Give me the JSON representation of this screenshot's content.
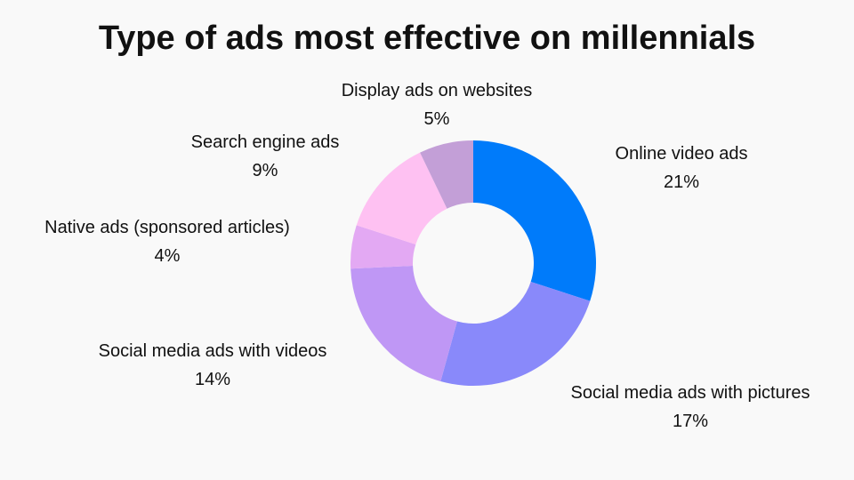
{
  "chart_data": {
    "type": "pie",
    "donut": true,
    "title": "Type of ads most effective on millennials",
    "slices": [
      {
        "label": "Online video ads",
        "value": 21,
        "display": "21%",
        "color": "#007BFA"
      },
      {
        "label": "Social media ads with pictures",
        "value": 17,
        "display": "17%",
        "color": "#8989FA"
      },
      {
        "label": "Social media ads with videos",
        "value": 14,
        "display": "14%",
        "color": "#BF97F5"
      },
      {
        "label": "Native ads (sponsored articles)",
        "value": 4,
        "display": "4%",
        "color": "#E3A9F3"
      },
      {
        "label": "Search engine ads",
        "value": 9,
        "display": "9%",
        "color": "#FEC1F2"
      },
      {
        "label": "Display ads on websites",
        "value": 5,
        "display": "5%",
        "color": "#C39FD7"
      }
    ],
    "start_angle": "top, clockwise"
  }
}
